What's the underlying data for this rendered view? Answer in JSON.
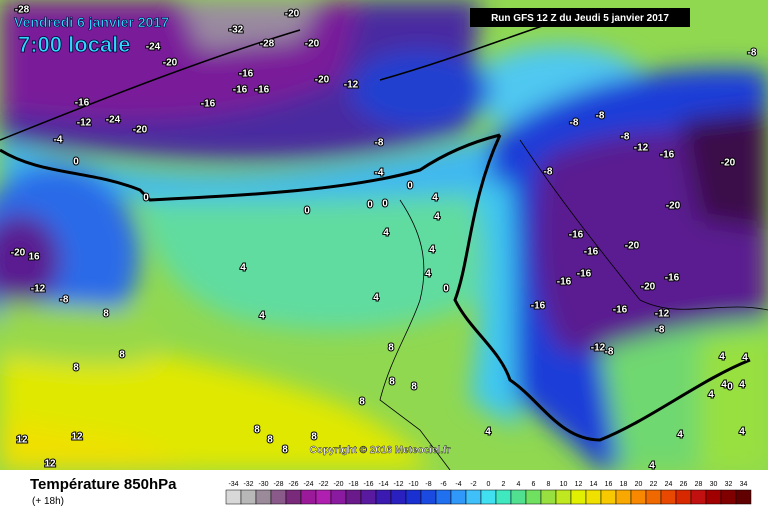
{
  "header": {
    "date": "Vendredi 6 janvier 2017",
    "time": "7:00 locale",
    "run": "Run GFS 12 Z du Jeudi 5 janvier 2017"
  },
  "footer": {
    "title": "Température 850hPa",
    "lead": "(+ 18h)",
    "copyright": "Copyright © 2016 Meteociel.fr"
  },
  "colorbar": {
    "ticks": [
      -34,
      -32,
      -30,
      -28,
      -26,
      -24,
      -22,
      -20,
      -18,
      -16,
      -14,
      -12,
      -10,
      -8,
      -6,
      -4,
      -2,
      0,
      2,
      4,
      6,
      8,
      10,
      12,
      14,
      16,
      18,
      20,
      22,
      24,
      26,
      28,
      30,
      32,
      34
    ],
    "colors": [
      "#d8d8d8",
      "#b8b8b8",
      "#9a8a9a",
      "#8a5a8a",
      "#7a2a7a",
      "#9a1a9a",
      "#b020b0",
      "#8a1aa0",
      "#6a1a8a",
      "#5a1aa0",
      "#3a1ab0",
      "#2a20c0",
      "#1a30d0",
      "#1a4ae0",
      "#2070f0",
      "#3098f8",
      "#40c0f8",
      "#40e0f0",
      "#40e8c0",
      "#50e090",
      "#70e060",
      "#98e040",
      "#c0e820",
      "#e0f000",
      "#f0e000",
      "#f8c800",
      "#f8a800",
      "#f88800",
      "#f06800",
      "#e84800",
      "#d82800",
      "#c01010",
      "#a00000",
      "#800000",
      "#600000"
    ]
  },
  "contour_labels": [
    -28,
    -20,
    -32,
    -24,
    -28,
    -20,
    -20,
    -16,
    -20,
    -12,
    -16,
    -16,
    -16,
    -16,
    -12,
    -24,
    -20,
    -4,
    -8,
    -8,
    -8,
    -8,
    -8,
    -12,
    -16,
    -20,
    0,
    -4,
    -8,
    0,
    0,
    0,
    0,
    0,
    4,
    4,
    -20,
    4,
    4,
    -16,
    -16,
    -20,
    -20,
    16,
    4,
    4,
    -16,
    -16,
    -16,
    -12,
    -8,
    -20,
    4,
    0,
    -16,
    -16,
    -12,
    8,
    4,
    -8,
    8,
    -12,
    -8,
    8,
    8,
    8,
    4,
    4,
    8,
    8,
    4,
    4,
    0,
    4,
    12,
    12,
    8,
    8,
    8,
    4,
    4,
    12,
    8,
    4,
    4
  ]
}
